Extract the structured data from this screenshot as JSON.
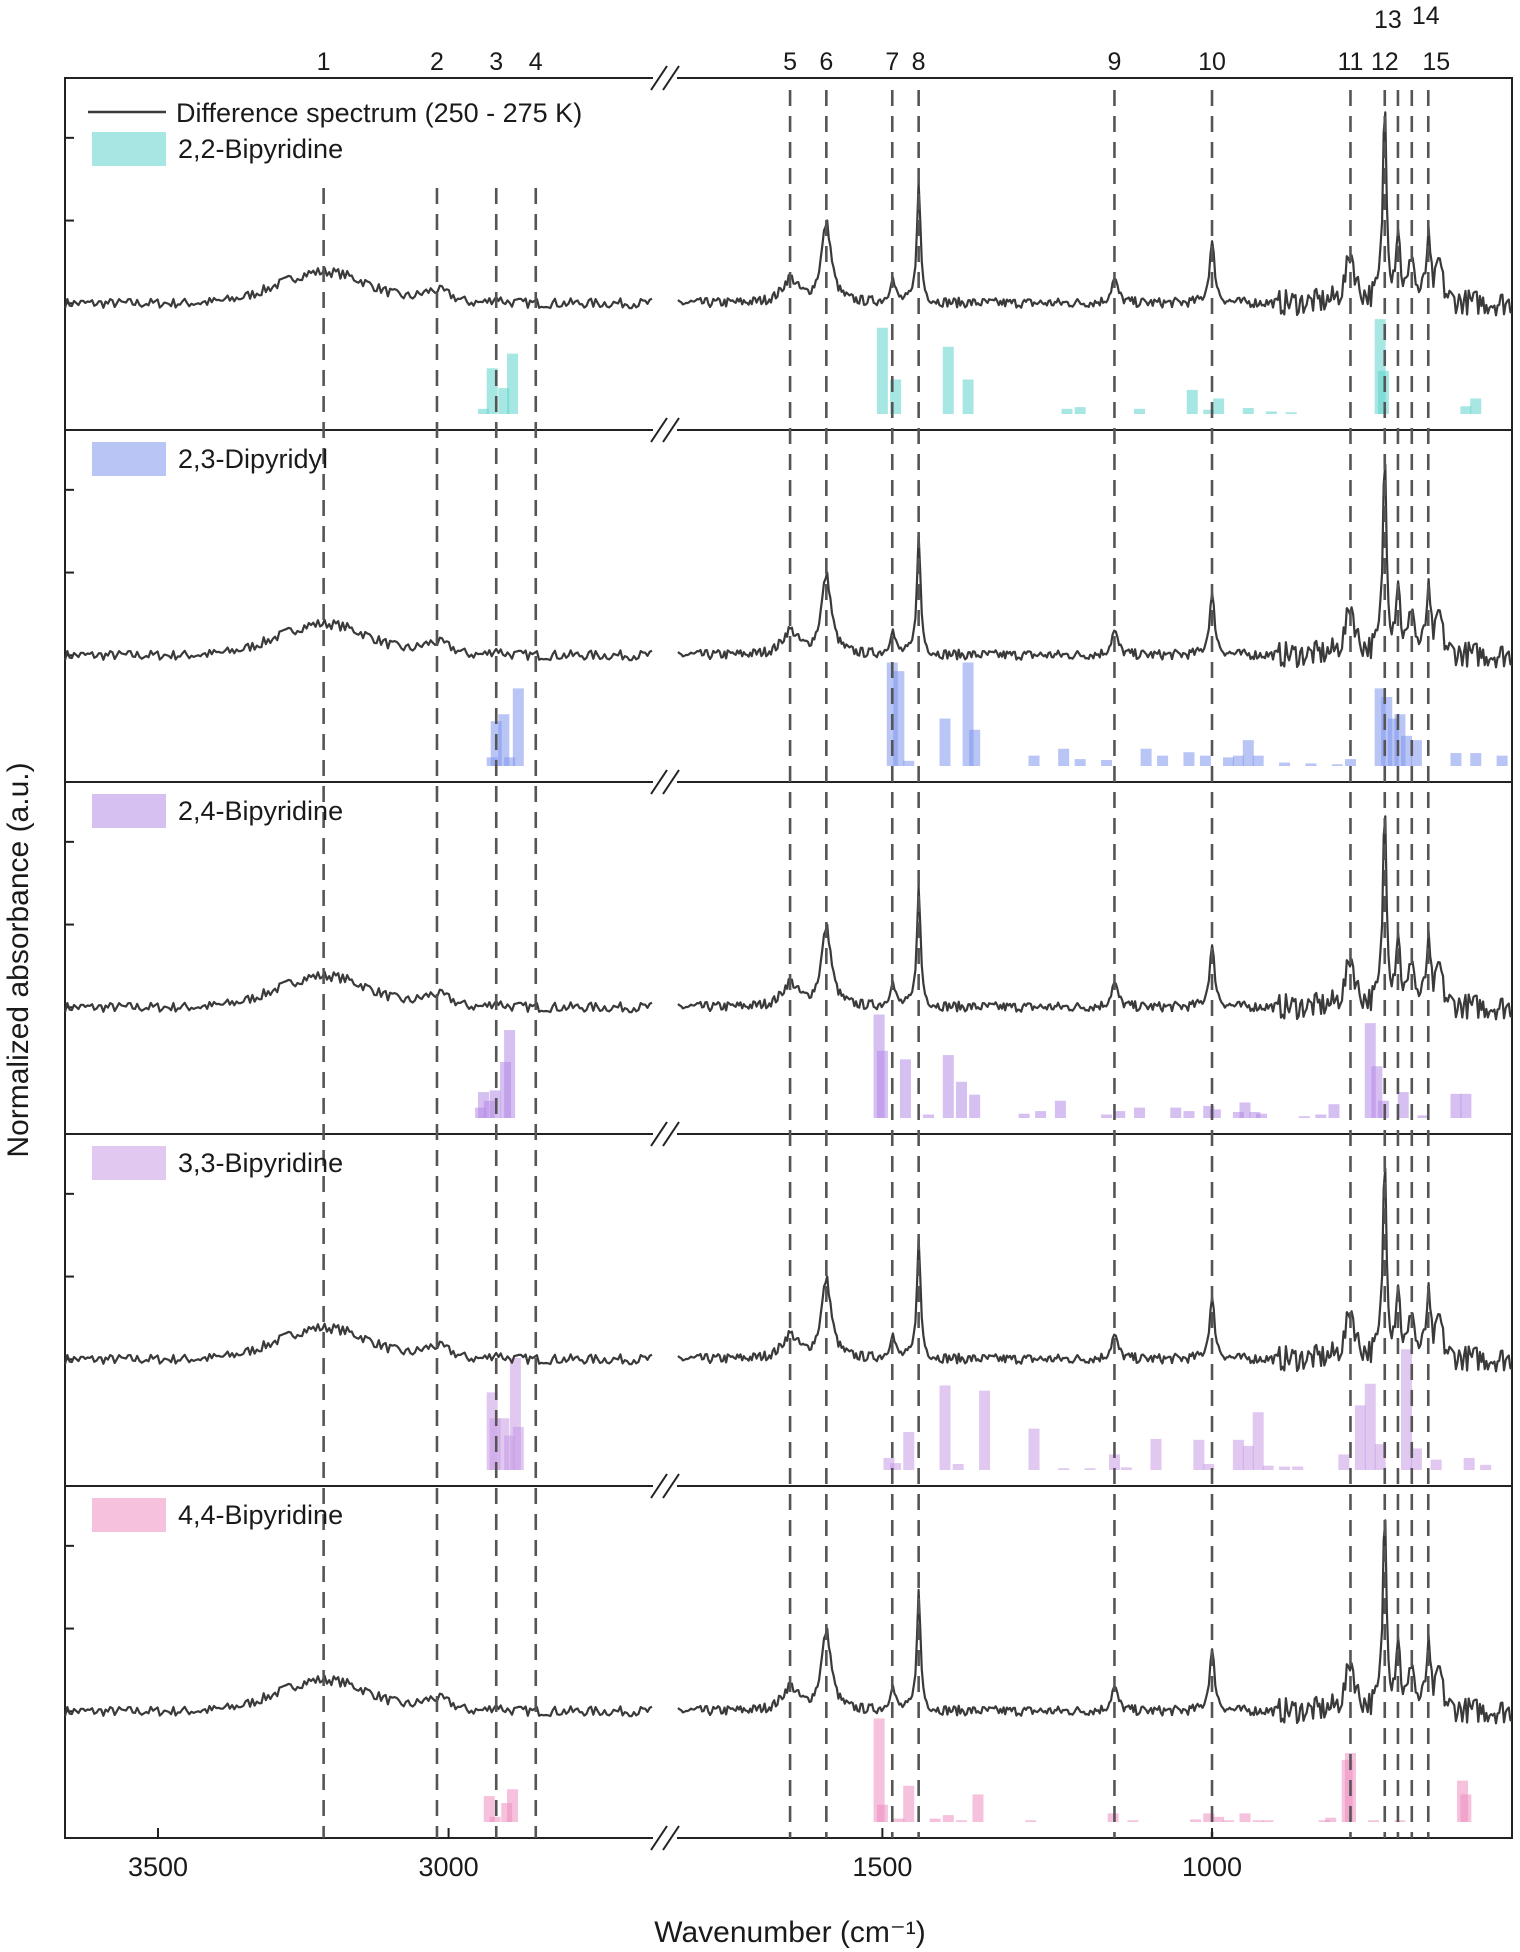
{
  "chart_data": {
    "type": "bar",
    "xlabel": "Wavenumber (cm⁻¹)",
    "ylabel": "Normalized absorbance (a.u.)",
    "x_ticks": [
      {
        "value": 3500,
        "label": "3500"
      },
      {
        "value": 3000,
        "label": "3000"
      },
      {
        "value": 1500,
        "label": "1500"
      },
      {
        "value": 1000,
        "label": "1000"
      }
    ],
    "x_segments": [
      {
        "xlim": [
          3660,
          2650
        ]
      },
      {
        "xlim": [
          1810,
          545
        ]
      }
    ],
    "axis_break": true,
    "peak_markers": [
      {
        "label": "1",
        "x": 3215
      },
      {
        "label": "2",
        "x": 3020
      },
      {
        "label": "3",
        "x": 2918
      },
      {
        "label": "4",
        "x": 2850
      },
      {
        "label": "5",
        "x": 1640
      },
      {
        "label": "6",
        "x": 1585
      },
      {
        "label": "7",
        "x": 1485
      },
      {
        "label": "8",
        "x": 1445
      },
      {
        "label": "9",
        "x": 1148
      },
      {
        "label": "10",
        "x": 1000
      },
      {
        "label": "11",
        "x": 790
      },
      {
        "label": "12",
        "x": 738
      },
      {
        "label": "13",
        "x": 718
      },
      {
        "label": "14",
        "x": 697
      },
      {
        "label": "15",
        "x": 672
      }
    ],
    "difference_spectrum": {
      "name": "Difference spectrum (250 - 275 K)",
      "color": "#3a3a3a",
      "baseline": 0.0,
      "broad_bands": [
        {
          "x": 3215,
          "height": 0.16,
          "width": 110
        },
        {
          "x": 3020,
          "height": 0.06,
          "width": 35
        }
      ],
      "peaks": [
        {
          "x": 2918,
          "height": 0.03,
          "width": 10
        },
        {
          "x": 1640,
          "height": 0.12,
          "width": 14
        },
        {
          "x": 1585,
          "height": 0.4,
          "width": 9
        },
        {
          "x": 1485,
          "height": 0.12,
          "width": 5
        },
        {
          "x": 1445,
          "height": 0.6,
          "width": 3.5
        },
        {
          "x": 1148,
          "height": 0.12,
          "width": 6
        },
        {
          "x": 1000,
          "height": 0.3,
          "width": 5
        },
        {
          "x": 790,
          "height": 0.25,
          "width": 8
        },
        {
          "x": 738,
          "height": 1.0,
          "width": 3.5
        },
        {
          "x": 718,
          "height": 0.35,
          "width": 4
        },
        {
          "x": 697,
          "height": 0.25,
          "width": 4
        },
        {
          "x": 672,
          "height": 0.3,
          "width": 4
        },
        {
          "x": 655,
          "height": 0.2,
          "width": 5
        }
      ],
      "noise_amplitude": 0.025
    },
    "panels": [
      {
        "name": "2,2-Bipyridine",
        "color": "#5fd3cc",
        "bars": [
          [
            2940,
            0.06
          ],
          [
            2925,
            0.53
          ],
          [
            2905,
            0.3
          ],
          [
            2890,
            0.7
          ],
          [
            1500,
            1.0
          ],
          [
            1480,
            0.4
          ],
          [
            1400,
            0.78
          ],
          [
            1370,
            0.4
          ],
          [
            1220,
            0.06
          ],
          [
            1200,
            0.08
          ],
          [
            1110,
            0.06
          ],
          [
            1030,
            0.28
          ],
          [
            1005,
            0.05
          ],
          [
            990,
            0.18
          ],
          [
            945,
            0.07
          ],
          [
            910,
            0.03
          ],
          [
            880,
            0.02
          ],
          [
            745,
            1.1
          ],
          [
            740,
            0.5
          ],
          [
            615,
            0.09
          ],
          [
            600,
            0.18
          ]
        ]
      },
      {
        "name": "2,3-Dipyridyl",
        "color": "#7f96ec",
        "bars": [
          [
            2925,
            0.1
          ],
          [
            2918,
            0.52
          ],
          [
            2905,
            0.6
          ],
          [
            2895,
            0.1
          ],
          [
            2880,
            0.9
          ],
          [
            1485,
            1.2
          ],
          [
            1475,
            1.1
          ],
          [
            1460,
            0.06
          ],
          [
            1405,
            0.55
          ],
          [
            1370,
            1.2
          ],
          [
            1360,
            0.42
          ],
          [
            1270,
            0.12
          ],
          [
            1225,
            0.2
          ],
          [
            1200,
            0.08
          ],
          [
            1160,
            0.07
          ],
          [
            1100,
            0.2
          ],
          [
            1075,
            0.12
          ],
          [
            1035,
            0.16
          ],
          [
            1010,
            0.12
          ],
          [
            975,
            0.1
          ],
          [
            960,
            0.12
          ],
          [
            945,
            0.3
          ],
          [
            930,
            0.12
          ],
          [
            890,
            0.04
          ],
          [
            850,
            0.03
          ],
          [
            810,
            0.02
          ],
          [
            790,
            0.08
          ],
          [
            745,
            0.9
          ],
          [
            735,
            0.8
          ],
          [
            725,
            0.55
          ],
          [
            715,
            0.6
          ],
          [
            705,
            0.35
          ],
          [
            690,
            0.3
          ],
          [
            630,
            0.15
          ],
          [
            600,
            0.15
          ],
          [
            560,
            0.12
          ]
        ]
      },
      {
        "name": "2,4-Bipyridine",
        "color": "#b58be6",
        "bars": [
          [
            2945,
            0.12
          ],
          [
            2940,
            0.3
          ],
          [
            2930,
            0.2
          ],
          [
            2920,
            0.32
          ],
          [
            2902,
            0.65
          ],
          [
            2895,
            1.02
          ],
          [
            1505,
            1.2
          ],
          [
            1500,
            0.78
          ],
          [
            1465,
            0.68
          ],
          [
            1430,
            0.04
          ],
          [
            1400,
            0.73
          ],
          [
            1380,
            0.42
          ],
          [
            1360,
            0.27
          ],
          [
            1285,
            0.05
          ],
          [
            1260,
            0.08
          ],
          [
            1230,
            0.2
          ],
          [
            1160,
            0.04
          ],
          [
            1140,
            0.08
          ],
          [
            1110,
            0.12
          ],
          [
            1055,
            0.12
          ],
          [
            1035,
            0.08
          ],
          [
            1005,
            0.14
          ],
          [
            995,
            0.1
          ],
          [
            960,
            0.07
          ],
          [
            950,
            0.18
          ],
          [
            935,
            0.07
          ],
          [
            925,
            0.05
          ],
          [
            860,
            0.02
          ],
          [
            835,
            0.04
          ],
          [
            815,
            0.16
          ],
          [
            760,
            1.1
          ],
          [
            750,
            0.6
          ],
          [
            740,
            0.2
          ],
          [
            710,
            0.3
          ],
          [
            680,
            0.03
          ],
          [
            630,
            0.28
          ],
          [
            615,
            0.28
          ]
        ]
      },
      {
        "name": "3,3-Bipyridine",
        "color": "#c79ae6",
        "bars": [
          [
            2925,
            0.9
          ],
          [
            2920,
            0.6
          ],
          [
            2905,
            0.6
          ],
          [
            2895,
            0.4
          ],
          [
            2885,
            1.3
          ],
          [
            2880,
            0.5
          ],
          [
            1490,
            0.14
          ],
          [
            1480,
            0.08
          ],
          [
            1460,
            0.44
          ],
          [
            1405,
            0.98
          ],
          [
            1385,
            0.07
          ],
          [
            1345,
            0.92
          ],
          [
            1270,
            0.48
          ],
          [
            1225,
            0.02
          ],
          [
            1185,
            0.02
          ],
          [
            1148,
            0.18
          ],
          [
            1130,
            0.03
          ],
          [
            1085,
            0.36
          ],
          [
            1020,
            0.35
          ],
          [
            1005,
            0.07
          ],
          [
            960,
            0.35
          ],
          [
            945,
            0.28
          ],
          [
            930,
            0.67
          ],
          [
            915,
            0.05
          ],
          [
            890,
            0.04
          ],
          [
            870,
            0.04
          ],
          [
            800,
            0.18
          ],
          [
            775,
            0.75
          ],
          [
            760,
            1.0
          ],
          [
            745,
            0.3
          ],
          [
            705,
            1.4
          ],
          [
            690,
            0.25
          ],
          [
            660,
            0.12
          ],
          [
            610,
            0.14
          ],
          [
            585,
            0.06
          ]
        ]
      },
      {
        "name": "4,4-Bipyridine",
        "color": "#ef8ec0",
        "bars": [
          [
            2930,
            0.3
          ],
          [
            2920,
            0.06
          ],
          [
            2900,
            0.22
          ],
          [
            2890,
            0.38
          ],
          [
            1505,
            1.2
          ],
          [
            1500,
            0.2
          ],
          [
            1475,
            0.04
          ],
          [
            1460,
            0.42
          ],
          [
            1420,
            0.04
          ],
          [
            1400,
            0.08
          ],
          [
            1380,
            0.02
          ],
          [
            1355,
            0.32
          ],
          [
            1275,
            0.02
          ],
          [
            1150,
            0.1
          ],
          [
            1120,
            0.02
          ],
          [
            1025,
            0.03
          ],
          [
            1005,
            0.1
          ],
          [
            990,
            0.06
          ],
          [
            975,
            0.02
          ],
          [
            950,
            0.1
          ],
          [
            930,
            0.02
          ],
          [
            915,
            0.02
          ],
          [
            830,
            0.02
          ],
          [
            820,
            0.05
          ],
          [
            795,
            0.72
          ],
          [
            790,
            0.8
          ],
          [
            755,
            0.02
          ],
          [
            715,
            0.02
          ],
          [
            620,
            0.48
          ],
          [
            615,
            0.32
          ]
        ]
      }
    ]
  }
}
